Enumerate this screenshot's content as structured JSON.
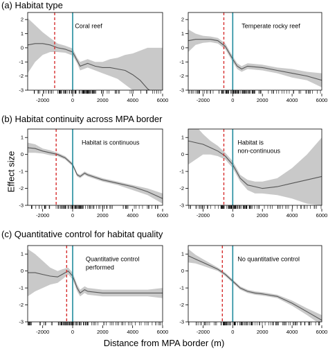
{
  "figure": {
    "y_label": "Effect size",
    "x_label": "Distance from MPA border (m)",
    "sections": [
      {
        "title": "(a)  Habitat type"
      },
      {
        "title": "(b)  Habitat continuity across MPA border"
      },
      {
        "title": "(c)  Quantitative control for habitat quality"
      }
    ],
    "colors": {
      "band": "#c9c9c9",
      "line": "#555555",
      "border_line": "#1f8a9c",
      "dashed": "#d62d2d",
      "rug": "#000000"
    }
  },
  "chart_data": [
    {
      "type": "line",
      "panel": "a-left",
      "annotation": "Coral reef",
      "xlim": [
        -3000,
        6000
      ],
      "ylim": [
        -3,
        2.5
      ],
      "x_ticks": [
        -2000,
        0,
        2000,
        4000,
        6000
      ],
      "y_ticks": [
        -3,
        -2,
        -1,
        0,
        1,
        2
      ],
      "border_x": 0,
      "dashed_x": -1200,
      "x": [
        -3000,
        -2500,
        -2000,
        -1500,
        -1000,
        -500,
        0,
        300,
        500,
        1000,
        1500,
        2000,
        2500,
        3000,
        3500,
        4000,
        4500,
        5000,
        5500,
        6000
      ],
      "y": [
        0.2,
        0.3,
        0.3,
        0.2,
        0.0,
        -0.1,
        -0.3,
        -0.9,
        -1.3,
        -1.1,
        -1.3,
        -1.4,
        -1.4,
        -1.5,
        -1.6,
        -1.9,
        -2.3,
        -2.9,
        -3.3,
        -3.8
      ],
      "lower": [
        -1.8,
        -1.0,
        -0.5,
        -0.3,
        -0.3,
        -0.35,
        -0.55,
        -1.1,
        -1.6,
        -1.4,
        -1.6,
        -1.8,
        -2.0,
        -2.2,
        -2.6,
        -3.0,
        -3.0,
        -3.0,
        -3.0,
        -3.0
      ],
      "upper": [
        2.1,
        1.6,
        1.1,
        0.7,
        0.3,
        0.15,
        -0.05,
        -0.7,
        -1.0,
        -0.8,
        -1.0,
        -1.0,
        -0.8,
        -0.7,
        -0.5,
        -0.4,
        -0.2,
        0.0,
        0.0,
        0.0
      ]
    },
    {
      "type": "line",
      "panel": "a-right",
      "annotation": "Temperate rocky reef",
      "xlim": [
        -3000,
        6000
      ],
      "ylim": [
        -3,
        2.5
      ],
      "x_ticks": [
        -2000,
        0,
        2000,
        4000,
        6000
      ],
      "y_ticks": [
        -3,
        -2,
        -1,
        0,
        1,
        2
      ],
      "border_x": 0,
      "dashed_x": -600,
      "x": [
        -3000,
        -2500,
        -2000,
        -1500,
        -1000,
        -500,
        0,
        300,
        600,
        1000,
        2000,
        3000,
        4000,
        5000,
        6000
      ],
      "y": [
        0.5,
        0.6,
        0.6,
        0.6,
        0.5,
        0.1,
        -0.8,
        -1.3,
        -1.5,
        -1.3,
        -1.4,
        -1.6,
        -1.8,
        -2.0,
        -2.3
      ],
      "lower": [
        -0.3,
        0.2,
        0.35,
        0.4,
        0.3,
        -0.1,
        -1.0,
        -1.5,
        -1.7,
        -1.5,
        -1.6,
        -1.8,
        -2.1,
        -2.3,
        -2.8
      ],
      "upper": [
        1.3,
        1.0,
        0.85,
        0.8,
        0.7,
        0.3,
        -0.6,
        -1.1,
        -1.3,
        -1.1,
        -1.2,
        -1.4,
        -1.5,
        -1.7,
        -1.8
      ]
    },
    {
      "type": "line",
      "panel": "b-left",
      "annotation": "Habitat is continuous",
      "xlim": [
        -3000,
        6000
      ],
      "ylim": [
        -3,
        1.5
      ],
      "x_ticks": [
        -2000,
        0,
        2000,
        4000,
        6000
      ],
      "y_ticks": [
        -3,
        -2,
        -1,
        0,
        1
      ],
      "border_x": 0,
      "dashed_x": -1100,
      "x": [
        -3000,
        -2500,
        -2000,
        -1500,
        -1000,
        -500,
        0,
        300,
        500,
        800,
        1000,
        2000,
        3000,
        4000,
        5000,
        6000
      ],
      "y": [
        0.4,
        0.35,
        0.2,
        0.1,
        0.0,
        -0.2,
        -0.6,
        -1.2,
        -1.3,
        -1.1,
        -1.2,
        -1.5,
        -1.7,
        -1.9,
        -2.2,
        -2.6
      ],
      "lower": [
        0.1,
        0.1,
        0.05,
        -0.05,
        -0.1,
        -0.3,
        -0.7,
        -1.3,
        -1.4,
        -1.2,
        -1.3,
        -1.6,
        -1.8,
        -2.1,
        -2.4,
        -2.9
      ],
      "upper": [
        0.7,
        0.6,
        0.35,
        0.25,
        0.1,
        -0.1,
        -0.5,
        -1.1,
        -1.2,
        -1.0,
        -1.1,
        -1.4,
        -1.6,
        -1.8,
        -2.0,
        -2.3
      ]
    },
    {
      "type": "line",
      "panel": "b-right",
      "annotation": "Habitat is non-continuous",
      "xlim": [
        -3000,
        6000
      ],
      "ylim": [
        -3,
        1.5
      ],
      "x_ticks": [
        -2000,
        0,
        2000,
        4000,
        6000
      ],
      "y_ticks": [
        -3,
        -2,
        -1,
        0,
        1
      ],
      "border_x": 0,
      "dashed_x": -600,
      "x": [
        -3000,
        -2500,
        -2000,
        -1500,
        -1000,
        -500,
        0,
        500,
        1000,
        1500,
        2000,
        3000,
        4000,
        5000,
        6000
      ],
      "y": [
        0.8,
        0.7,
        0.6,
        0.4,
        0.2,
        -0.1,
        -0.6,
        -1.4,
        -1.8,
        -1.9,
        -2.0,
        -1.9,
        -1.7,
        -1.5,
        -1.3
      ],
      "lower": [
        -0.6,
        -0.3,
        0.0,
        0.0,
        -0.1,
        -0.3,
        -0.8,
        -1.6,
        -2.1,
        -2.3,
        -2.3,
        -2.4,
        -2.6,
        -2.9,
        -3.0
      ],
      "upper": [
        2.2,
        1.7,
        1.2,
        0.8,
        0.5,
        0.1,
        -0.4,
        -1.2,
        -1.5,
        -1.6,
        -1.6,
        -1.4,
        -0.8,
        0.0,
        1.0
      ]
    },
    {
      "type": "line",
      "panel": "c-left",
      "annotation": "Quantitative control performed",
      "xlim": [
        -3000,
        6000
      ],
      "ylim": [
        -3,
        1.5
      ],
      "x_ticks": [
        -2000,
        0,
        2000,
        4000,
        6000
      ],
      "y_ticks": [
        -3,
        -2,
        -1,
        0,
        1
      ],
      "border_x": 0,
      "dashed_x": -400,
      "x": [
        -3000,
        -2500,
        -2000,
        -1500,
        -1000,
        -700,
        -300,
        0,
        300,
        500,
        800,
        1000,
        2000,
        3000,
        4000,
        5000,
        6000
      ],
      "y": [
        -0.1,
        -0.1,
        -0.2,
        -0.3,
        -0.35,
        -0.2,
        0.0,
        -0.3,
        -1.0,
        -1.3,
        -1.1,
        -1.2,
        -1.3,
        -1.3,
        -1.3,
        -1.3,
        -1.3
      ],
      "lower": [
        -1.5,
        -1.2,
        -1.0,
        -0.8,
        -0.7,
        -0.5,
        -0.2,
        -0.5,
        -1.2,
        -1.5,
        -1.3,
        -1.4,
        -1.5,
        -1.5,
        -1.5,
        -1.5,
        -1.6
      ],
      "upper": [
        1.3,
        1.0,
        0.6,
        0.2,
        0.0,
        0.1,
        0.2,
        -0.1,
        -0.8,
        -1.1,
        -0.9,
        -1.0,
        -1.1,
        -1.1,
        -1.1,
        -1.1,
        -1.0
      ]
    },
    {
      "type": "line",
      "panel": "c-right",
      "annotation": "No quantitative control",
      "xlim": [
        -3000,
        6000
      ],
      "ylim": [
        -3,
        1.5
      ],
      "x_ticks": [
        -2000,
        0,
        2000,
        4000,
        6000
      ],
      "y_ticks": [
        -3,
        -2,
        -1,
        0,
        1
      ],
      "border_x": 0,
      "dashed_x": -700,
      "x": [
        -3000,
        -2500,
        -2000,
        -1500,
        -1000,
        -500,
        0,
        500,
        1000,
        1500,
        2000,
        3000,
        4000,
        5000,
        6000
      ],
      "y": [
        0.9,
        0.7,
        0.5,
        0.3,
        0.1,
        -0.2,
        -0.6,
        -1.0,
        -1.2,
        -1.3,
        -1.35,
        -1.5,
        -1.9,
        -2.4,
        -2.9
      ],
      "lower": [
        0.5,
        0.45,
        0.3,
        0.15,
        0.0,
        -0.3,
        -0.7,
        -1.1,
        -1.3,
        -1.4,
        -1.45,
        -1.6,
        -2.05,
        -2.6,
        -3.2
      ],
      "upper": [
        1.3,
        0.95,
        0.7,
        0.45,
        0.2,
        -0.1,
        -0.5,
        -0.9,
        -1.1,
        -1.2,
        -1.25,
        -1.4,
        -1.75,
        -2.2,
        -2.6
      ]
    }
  ]
}
